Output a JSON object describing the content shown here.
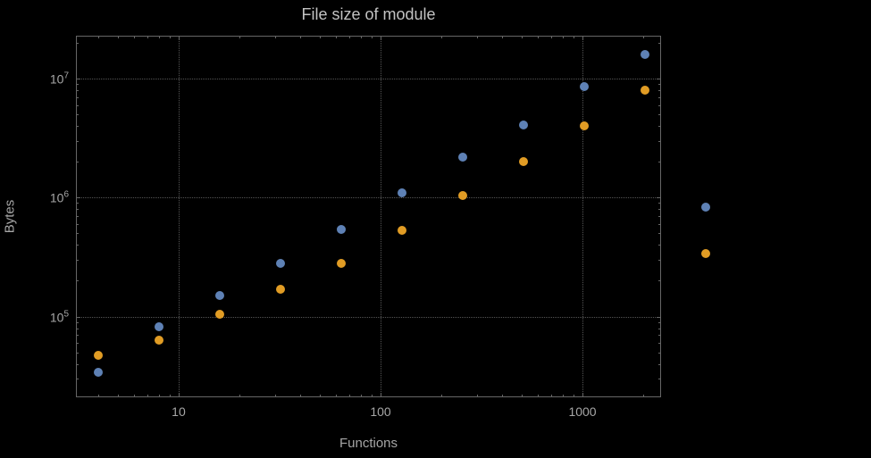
{
  "chart_data": {
    "type": "scatter",
    "title": "File size of module",
    "xlabel": "Functions",
    "ylabel": "Bytes",
    "x_scale": "log",
    "y_scale": "log",
    "grid": "dotted",
    "legend": "none",
    "xlim": [
      3.1,
      2450
    ],
    "ylim": [
      21000,
      22900000
    ],
    "x": [
      4,
      8,
      16,
      32,
      64,
      128,
      256,
      512,
      1024,
      2048,
      4096
    ],
    "series": [
      {
        "name": "series-blue",
        "color": "#5e81b5",
        "values": [
          34000,
          82000,
          150000,
          280000,
          540000,
          1100000,
          2200000,
          4100000,
          8500000,
          16000000,
          830000
        ]
      },
      {
        "name": "series-orange",
        "color": "#e19c24",
        "values": [
          47000,
          63000,
          104000,
          170000,
          280000,
          530000,
          1040000,
          2000000,
          4000000,
          8000000,
          340000
        ]
      }
    ],
    "x_ticks": [
      {
        "value": 10,
        "label": "10"
      },
      {
        "value": 100,
        "label": "100"
      },
      {
        "value": 1000,
        "label": "1000"
      }
    ],
    "y_ticks": [
      {
        "value": 100000,
        "base": "10",
        "exp": "5"
      },
      {
        "value": 1000000,
        "base": "10",
        "exp": "6"
      },
      {
        "value": 10000000,
        "base": "10",
        "exp": "7"
      }
    ],
    "colors": {
      "background": "#000000",
      "frame": "#666666",
      "grid": "#555555",
      "title_text": "#c2c2c2",
      "label_text": "#a6a6a6",
      "tick_text": "#a6a6a6"
    }
  }
}
